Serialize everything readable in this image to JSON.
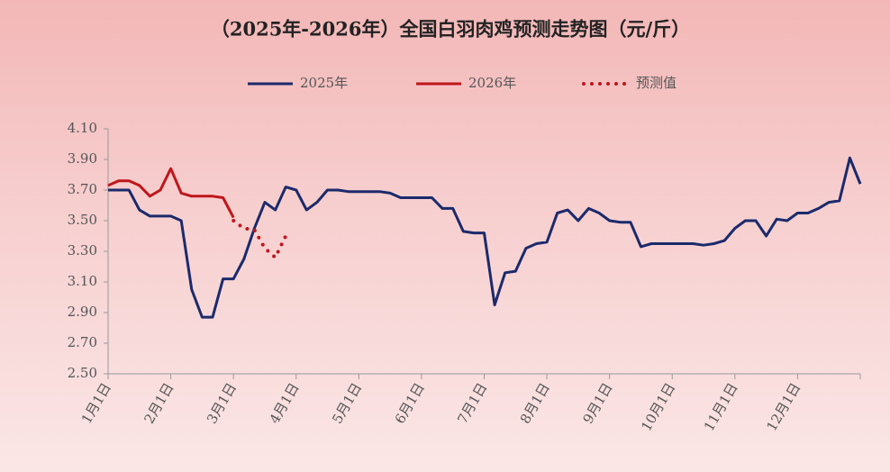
{
  "chart_data": {
    "type": "line",
    "title": "（2025年-2026年）全国白羽肉鸡预测走势图（元/斤）",
    "categories": [
      "1月1日",
      null,
      null,
      null,
      null,
      null,
      "2月1日",
      null,
      null,
      null,
      null,
      null,
      "3月1日",
      null,
      null,
      null,
      null,
      null,
      "4月1日",
      null,
      null,
      null,
      null,
      null,
      "5月1日",
      null,
      null,
      null,
      null,
      null,
      "6月1日",
      null,
      null,
      null,
      null,
      null,
      "7月1日",
      null,
      null,
      null,
      null,
      null,
      "8月1日",
      null,
      null,
      null,
      null,
      null,
      "9月1日",
      null,
      null,
      null,
      null,
      null,
      "10月1日",
      null,
      null,
      null,
      null,
      null,
      "11月1日",
      null,
      null,
      null,
      null,
      null,
      "12月1日",
      null,
      null,
      null,
      null,
      null,
      null
    ],
    "series": [
      {
        "name": "2025年",
        "color": "#1b2a6b",
        "style": "solid",
        "values": [
          3.7,
          3.7,
          3.7,
          3.57,
          3.53,
          3.53,
          3.53,
          3.5,
          3.05,
          2.87,
          2.87,
          3.12,
          3.12,
          3.25,
          3.45,
          3.62,
          3.57,
          3.72,
          3.7,
          3.57,
          3.62,
          3.7,
          3.7,
          3.69,
          3.69,
          3.69,
          3.69,
          3.68,
          3.65,
          3.65,
          3.65,
          3.65,
          3.58,
          3.58,
          3.43,
          3.42,
          3.42,
          2.95,
          3.16,
          3.17,
          3.32,
          3.35,
          3.36,
          3.55,
          3.57,
          3.5,
          3.58,
          3.55,
          3.5,
          3.49,
          3.49,
          3.33,
          3.35,
          3.35,
          3.35,
          3.35,
          3.35,
          3.34,
          3.35,
          3.37,
          3.45,
          3.5,
          3.5,
          3.4,
          3.51,
          3.5,
          3.55,
          3.55,
          3.58,
          3.62,
          3.63,
          3.91,
          3.74
        ]
      },
      {
        "name": "2026年",
        "color": "#c0161b",
        "style": "solid",
        "values": [
          3.73,
          3.76,
          3.76,
          3.73,
          3.66,
          3.7,
          3.84,
          3.68,
          3.66,
          3.66,
          3.66,
          3.65,
          3.52,
          null,
          null,
          null,
          null,
          null,
          null,
          null,
          null,
          null,
          null,
          null,
          null,
          null,
          null,
          null,
          null,
          null,
          null,
          null,
          null,
          null,
          null,
          null,
          null,
          null,
          null,
          null,
          null,
          null,
          null,
          null,
          null,
          null,
          null,
          null,
          null,
          null,
          null,
          null,
          null,
          null,
          null,
          null,
          null,
          null,
          null,
          null,
          null,
          null,
          null,
          null,
          null,
          null,
          null,
          null,
          null,
          null,
          null,
          null,
          null
        ]
      },
      {
        "name": "预测值",
        "color": "#c0161b",
        "style": "dotted",
        "values": [
          null,
          null,
          null,
          null,
          null,
          null,
          null,
          null,
          null,
          null,
          null,
          null,
          3.5,
          3.45,
          3.44,
          3.32,
          3.26,
          3.4,
          null,
          null,
          null,
          null,
          null,
          null,
          null,
          null,
          null,
          null,
          null,
          null,
          null,
          null,
          null,
          null,
          null,
          null,
          null,
          null,
          null,
          null,
          null,
          null,
          null,
          null,
          null,
          null,
          null,
          null,
          null,
          null,
          null,
          null,
          null,
          null,
          null,
          null,
          null,
          null,
          null,
          null,
          null,
          null,
          null,
          null,
          null,
          null,
          null,
          null,
          null,
          null,
          null,
          null,
          null
        ]
      }
    ],
    "ylim": [
      2.5,
      4.1
    ],
    "yticks": [
      {
        "value": 2.5,
        "label": "2.50"
      },
      {
        "value": 2.7,
        "label": "2.70"
      },
      {
        "value": 2.9,
        "label": "2.90"
      },
      {
        "value": 3.1,
        "label": "3.10"
      },
      {
        "value": 3.3,
        "label": "3.30"
      },
      {
        "value": 3.5,
        "label": "3.50"
      },
      {
        "value": 3.7,
        "label": "3.70"
      },
      {
        "value": 3.9,
        "label": "3.90"
      },
      {
        "value": 4.1,
        "label": "4.10"
      }
    ],
    "grid": false,
    "legend": "top"
  }
}
